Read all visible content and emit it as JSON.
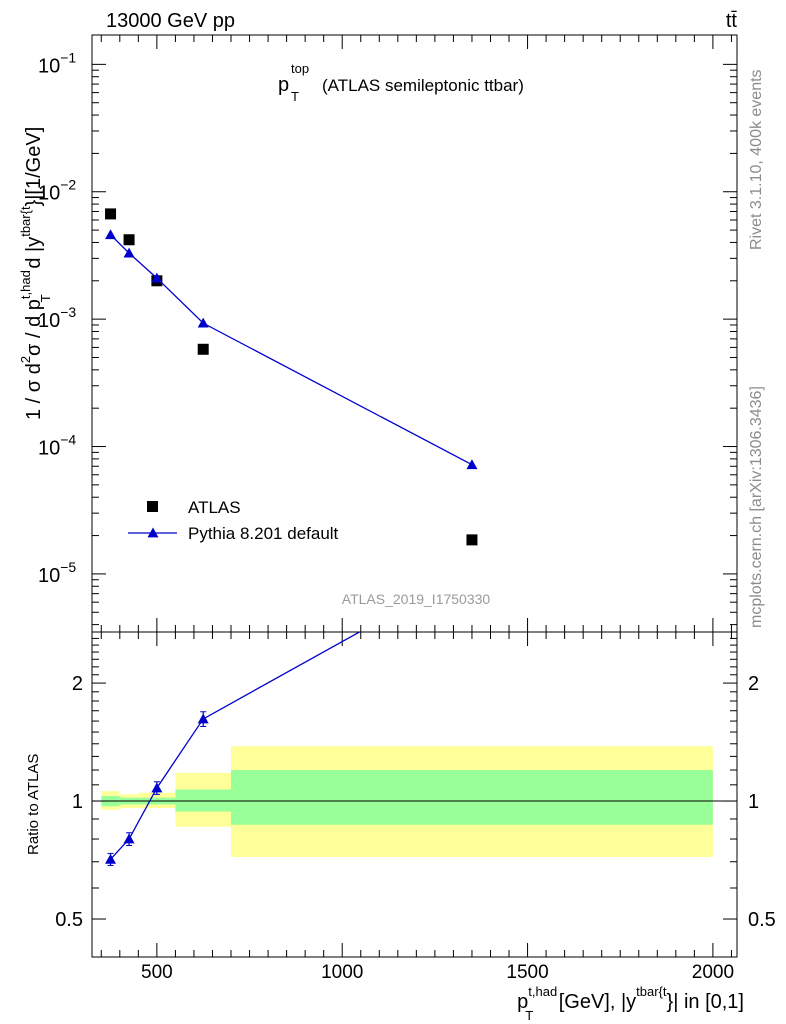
{
  "header": {
    "energy_label": "13000 GeV pp",
    "process_label": "tt̄"
  },
  "side_labels": {
    "rivet": "Rivet 3.1.10,  400k events",
    "mcplots": "mcplots.cern.ch [arXiv:1306.3436]"
  },
  "chart_data": [
    {
      "type": "scatter",
      "panel": "main",
      "title": {
        "symbol": "p",
        "superscript": "top",
        "subscript": "T",
        "text": "(ATLAS semileptonic ttbar)"
      },
      "ylabel": {
        "prefix": "1 / σ d",
        "sup2": "2",
        "mid": "σ / d p",
        "sup_had": "t,had",
        "sub_T": "T",
        "d_y": " d |y",
        "sup_tbar": "tbar{t",
        "unit": "}|[1/GeV]"
      },
      "yscale": "log",
      "ylim": [
        3.5e-06,
        0.17
      ],
      "xlim": [
        325,
        2065
      ],
      "y_ticks": [
        {
          "value": 0.1,
          "base": "10",
          "exp": "−1"
        },
        {
          "value": 0.01,
          "base": "10",
          "exp": "−2"
        },
        {
          "value": 0.001,
          "base": "10",
          "exp": "−3"
        },
        {
          "value": 0.0001,
          "base": "10",
          "exp": "−4"
        },
        {
          "value": 1e-05,
          "base": "10",
          "exp": "−5"
        }
      ],
      "watermark": "ATLAS_2019_I1750330",
      "legend_position": "bottom-left",
      "series": [
        {
          "name": "ATLAS",
          "marker": "square",
          "color": "#000000",
          "x": [
            375,
            425,
            500,
            625,
            1350
          ],
          "y": [
            0.0067,
            0.0042,
            0.002,
            0.00058,
            1.85e-05
          ]
        },
        {
          "name": "Pythia 8.201 default",
          "marker": "triangle",
          "color": "#0000cc",
          "x": [
            375,
            425,
            500,
            625,
            1350
          ],
          "y": [
            0.0046,
            0.0033,
            0.0021,
            0.00093,
            7.2e-05
          ]
        }
      ]
    },
    {
      "type": "line",
      "panel": "ratio",
      "ylabel": "Ratio to ATLAS",
      "yscale": "log",
      "ylim": [
        0.4,
        2.7
      ],
      "xlim": [
        325,
        2065
      ],
      "y_ticks": [
        {
          "value": 0.5,
          "label": "0.5"
        },
        {
          "value": 1,
          "label": "1"
        },
        {
          "value": 2,
          "label": "2"
        }
      ],
      "x_ticks": [
        {
          "value": 500,
          "label": "500"
        },
        {
          "value": 1000,
          "label": "1000"
        },
        {
          "value": 1500,
          "label": "1500"
        },
        {
          "value": 2000,
          "label": "2000"
        }
      ],
      "xlabel": {
        "symbol": "p",
        "sup_had": "t,had",
        "sub_T": "T",
        "mid": " [GeV], |y",
        "sup_tbar": "tbar{t",
        "tail": "}| in [0,1]"
      },
      "bands": [
        {
          "x_low": 350,
          "x_high": 400,
          "green": [
            0.97,
            1.03
          ],
          "yellow": [
            0.95,
            1.06
          ]
        },
        {
          "x_low": 400,
          "x_high": 450,
          "green": [
            0.98,
            1.02
          ],
          "yellow": [
            0.96,
            1.04
          ]
        },
        {
          "x_low": 450,
          "x_high": 550,
          "green": [
            0.98,
            1.02
          ],
          "yellow": [
            0.96,
            1.05
          ]
        },
        {
          "x_low": 550,
          "x_high": 700,
          "green": [
            0.94,
            1.07
          ],
          "yellow": [
            0.86,
            1.18
          ]
        },
        {
          "x_low": 700,
          "x_high": 2000,
          "green": [
            0.87,
            1.2
          ],
          "yellow": [
            0.72,
            1.38
          ]
        }
      ],
      "reference_line": 1,
      "series": [
        {
          "name": "Pythia 8.201 default",
          "color": "#0000cc",
          "x": [
            375,
            425,
            500,
            625,
            1350
          ],
          "y": [
            0.71,
            0.8,
            1.08,
            1.62,
            3.9
          ],
          "err": [
            0.025,
            0.03,
            0.04,
            0.07,
            0.2
          ]
        }
      ]
    }
  ]
}
